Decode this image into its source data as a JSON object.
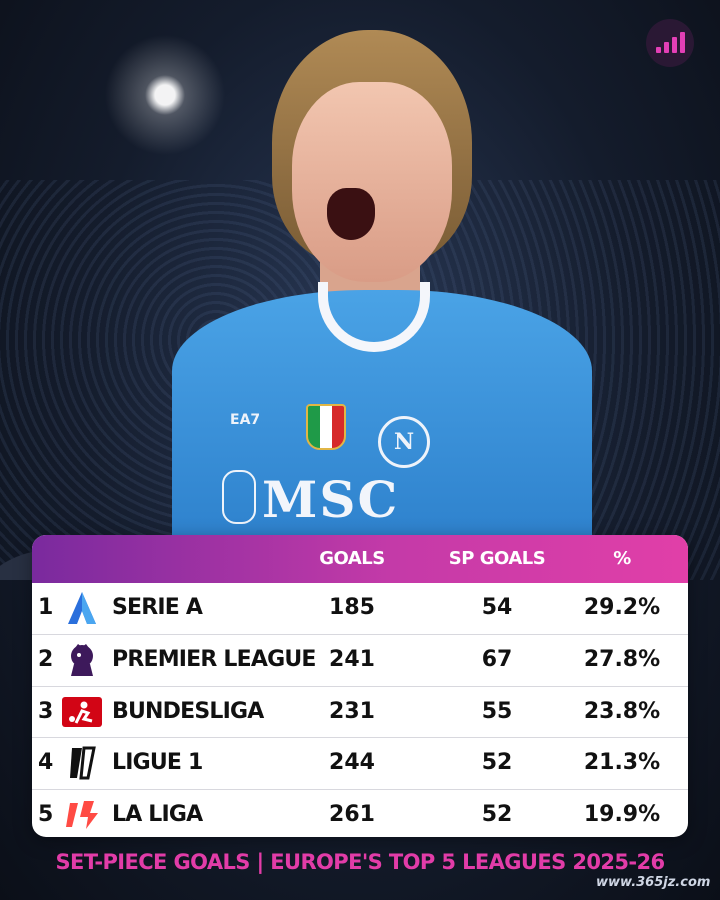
{
  "brand": {
    "accent": "#e13fa8",
    "header_gradient": [
      "#7a2a9e",
      "#e13fa8"
    ]
  },
  "jersey": {
    "brand": "EA7",
    "sponsor": "MSC",
    "crest_letter": "N"
  },
  "table": {
    "headers": {
      "goals": "GOALS",
      "sp_goals": "SP GOALS",
      "pct": "%"
    },
    "rows": [
      {
        "rank": "1",
        "icon": "serie-a-icon",
        "league": "SERIE A",
        "goals": "185",
        "sp_goals": "54",
        "pct": "29.2%"
      },
      {
        "rank": "2",
        "icon": "premier-league-icon",
        "league": "PREMIER LEAGUE",
        "goals": "241",
        "sp_goals": "67",
        "pct": "27.8%"
      },
      {
        "rank": "3",
        "icon": "bundesliga-icon",
        "league": "BUNDESLIGA",
        "goals": "231",
        "sp_goals": "55",
        "pct": "23.8%"
      },
      {
        "rank": "4",
        "icon": "ligue-1-icon",
        "league": "LIGUE 1",
        "goals": "244",
        "sp_goals": "52",
        "pct": "21.3%"
      },
      {
        "rank": "5",
        "icon": "la-liga-icon",
        "league": "LA LIGA",
        "goals": "261",
        "sp_goals": "52",
        "pct": "19.9%"
      }
    ]
  },
  "footer": {
    "title": "SET-PIECE GOALS | EUROPE'S TOP 5 LEAGUES 2025-26"
  },
  "watermark": "www.365jz.com"
}
